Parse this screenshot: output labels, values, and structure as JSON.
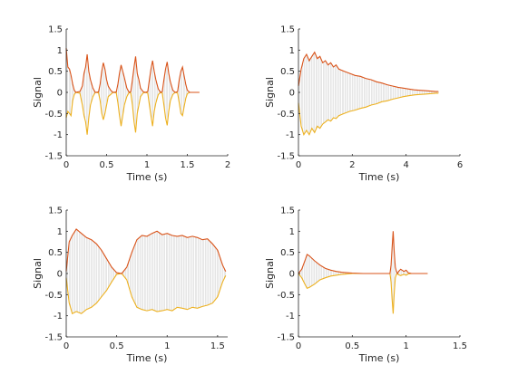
{
  "colors": {
    "upper": "#d95319",
    "lower": "#edb120",
    "fill": "#cccccc",
    "axis": "#262626"
  },
  "chart_data": [
    {
      "type": "area",
      "xlabel": "Time (s)",
      "ylabel": "Signal",
      "xlim": [
        0,
        2
      ],
      "ylim": [
        -1.5,
        1.5
      ],
      "xticks": [
        0,
        0.5,
        1,
        1.5,
        2
      ],
      "xtick_labels": [
        "0",
        "0.5",
        "1",
        "1.5",
        "2"
      ],
      "yticks": [
        -1.5,
        -1,
        -0.5,
        0,
        0.5,
        1,
        1.5
      ],
      "ytick_labels": [
        "-1.5",
        "-1",
        "-0.5",
        "0",
        "0.5",
        "1",
        "1.5"
      ],
      "grid": false,
      "series": [
        {
          "role": "upper envelope",
          "x": [
            0,
            0.02,
            0.04,
            0.06,
            0.08,
            0.1,
            0.12,
            0.14,
            0.17,
            0.2,
            0.22,
            0.24,
            0.26,
            0.28,
            0.3,
            0.33,
            0.36,
            0.4,
            0.42,
            0.44,
            0.46,
            0.48,
            0.5,
            0.52,
            0.55,
            0.58,
            0.62,
            0.64,
            0.66,
            0.68,
            0.7,
            0.72,
            0.75,
            0.78,
            0.8,
            0.82,
            0.84,
            0.86,
            0.88,
            0.9,
            0.92,
            0.95,
            0.98,
            1.01,
            1.03,
            1.05,
            1.07,
            1.09,
            1.11,
            1.14,
            1.17,
            1.19,
            1.21,
            1.23,
            1.25,
            1.27,
            1.29,
            1.32,
            1.35,
            1.38,
            1.4,
            1.42,
            1.44,
            1.46,
            1.48,
            1.5,
            1.53,
            1.56,
            1.6,
            1.65
          ],
          "y": [
            1.05,
            0.6,
            0.55,
            0.4,
            0.2,
            0.05,
            0.0,
            0.01,
            0.02,
            0.15,
            0.45,
            0.6,
            0.9,
            0.5,
            0.3,
            0.1,
            0.0,
            0.01,
            0.2,
            0.5,
            0.7,
            0.55,
            0.3,
            0.15,
            0.05,
            0.0,
            0.01,
            0.2,
            0.45,
            0.65,
            0.5,
            0.35,
            0.1,
            0.0,
            0.02,
            0.3,
            0.6,
            0.85,
            0.45,
            0.3,
            0.1,
            0.02,
            0.0,
            0.02,
            0.3,
            0.55,
            0.75,
            0.5,
            0.3,
            0.08,
            0.0,
            0.02,
            0.3,
            0.55,
            0.72,
            0.45,
            0.25,
            0.05,
            0.0,
            0.02,
            0.3,
            0.5,
            0.6,
            0.4,
            0.2,
            0.05,
            0.0,
            0.0,
            0.0,
            0.0
          ]
        },
        {
          "role": "lower envelope",
          "x": [
            0,
            0.02,
            0.04,
            0.06,
            0.08,
            0.1,
            0.12,
            0.14,
            0.17,
            0.2,
            0.22,
            0.24,
            0.26,
            0.28,
            0.3,
            0.33,
            0.36,
            0.4,
            0.42,
            0.44,
            0.46,
            0.48,
            0.5,
            0.52,
            0.55,
            0.58,
            0.62,
            0.64,
            0.66,
            0.68,
            0.7,
            0.72,
            0.75,
            0.78,
            0.8,
            0.82,
            0.84,
            0.86,
            0.88,
            0.9,
            0.92,
            0.95,
            0.98,
            1.01,
            1.03,
            1.05,
            1.07,
            1.09,
            1.11,
            1.14,
            1.17,
            1.19,
            1.21,
            1.23,
            1.25,
            1.27,
            1.29,
            1.32,
            1.35,
            1.38,
            1.4,
            1.42,
            1.44,
            1.46,
            1.48,
            1.5,
            1.53,
            1.56,
            1.6,
            1.65
          ],
          "y": [
            -0.6,
            -0.45,
            -0.5,
            -0.55,
            -0.2,
            -0.05,
            0.0,
            -0.01,
            -0.02,
            -0.3,
            -0.55,
            -0.7,
            -1.0,
            -0.6,
            -0.3,
            -0.1,
            0.0,
            -0.01,
            -0.2,
            -0.5,
            -0.65,
            -0.5,
            -0.3,
            -0.1,
            -0.05,
            0.0,
            -0.01,
            -0.25,
            -0.55,
            -0.8,
            -0.55,
            -0.3,
            -0.1,
            0.0,
            -0.02,
            -0.3,
            -0.7,
            -0.95,
            -0.5,
            -0.3,
            -0.1,
            -0.02,
            0.0,
            -0.02,
            -0.3,
            -0.55,
            -0.8,
            -0.45,
            -0.25,
            -0.05,
            0.0,
            -0.02,
            -0.3,
            -0.6,
            -0.78,
            -0.45,
            -0.2,
            -0.05,
            0.0,
            -0.02,
            -0.25,
            -0.5,
            -0.55,
            -0.35,
            -0.15,
            -0.03,
            0.0,
            0.0,
            0.0,
            0.0
          ]
        }
      ]
    },
    {
      "type": "area",
      "xlabel": "Time (s)",
      "ylabel": "Signal",
      "xlim": [
        0,
        6
      ],
      "ylim": [
        -1.5,
        1.5
      ],
      "xticks": [
        0,
        2,
        4,
        6
      ],
      "xtick_labels": [
        "0",
        "2",
        "4",
        "6"
      ],
      "yticks": [
        -1.5,
        -1,
        -0.5,
        0,
        0.5,
        1,
        1.5
      ],
      "ytick_labels": [
        "-1.5",
        "-1",
        "-0.5",
        "0",
        "0.5",
        "1",
        "1.5"
      ],
      "grid": false,
      "series": [
        {
          "role": "upper envelope",
          "x": [
            0,
            0.1,
            0.2,
            0.3,
            0.4,
            0.5,
            0.6,
            0.7,
            0.8,
            0.9,
            1.0,
            1.1,
            1.2,
            1.3,
            1.4,
            1.5,
            1.7,
            1.9,
            2.1,
            2.3,
            2.5,
            2.7,
            2.9,
            3.1,
            3.3,
            3.5,
            3.7,
            3.9,
            4.1,
            4.3,
            4.5,
            4.7,
            4.9,
            5.1,
            5.2
          ],
          "y": [
            0.15,
            0.55,
            0.8,
            0.9,
            0.75,
            0.85,
            0.95,
            0.8,
            0.85,
            0.7,
            0.75,
            0.65,
            0.7,
            0.6,
            0.65,
            0.55,
            0.5,
            0.45,
            0.4,
            0.38,
            0.33,
            0.3,
            0.25,
            0.22,
            0.18,
            0.15,
            0.12,
            0.1,
            0.08,
            0.06,
            0.05,
            0.04,
            0.03,
            0.02,
            0.02
          ]
        },
        {
          "role": "lower envelope",
          "x": [
            0,
            0.1,
            0.2,
            0.3,
            0.4,
            0.5,
            0.6,
            0.7,
            0.8,
            0.9,
            1.0,
            1.1,
            1.2,
            1.3,
            1.4,
            1.5,
            1.7,
            1.9,
            2.1,
            2.3,
            2.5,
            2.7,
            2.9,
            3.1,
            3.3,
            3.5,
            3.7,
            3.9,
            4.1,
            4.3,
            4.5,
            4.7,
            4.9,
            5.1,
            5.2
          ],
          "y": [
            -0.25,
            -0.8,
            -1.0,
            -0.9,
            -1.0,
            -0.85,
            -0.95,
            -0.8,
            -0.85,
            -0.75,
            -0.7,
            -0.65,
            -0.68,
            -0.6,
            -0.62,
            -0.55,
            -0.5,
            -0.45,
            -0.42,
            -0.38,
            -0.35,
            -0.3,
            -0.27,
            -0.22,
            -0.2,
            -0.16,
            -0.13,
            -0.1,
            -0.08,
            -0.06,
            -0.05,
            -0.04,
            -0.03,
            -0.02,
            -0.02
          ]
        }
      ]
    },
    {
      "type": "area",
      "xlabel": "Time (s)",
      "ylabel": "Signal",
      "xlim": [
        0,
        1.6
      ],
      "ylim": [
        -1.5,
        1.5
      ],
      "xticks": [
        0,
        0.5,
        1,
        1.5
      ],
      "xtick_labels": [
        "0",
        "0.5",
        "1",
        "1.5"
      ],
      "yticks": [
        -1.5,
        -1,
        -0.5,
        0,
        0.5,
        1,
        1.5
      ],
      "ytick_labels": [
        "-1.5",
        "-1",
        "-0.5",
        "0",
        "0.5",
        "1",
        "1.5"
      ],
      "grid": false,
      "series": [
        {
          "role": "upper envelope",
          "x": [
            0,
            0.03,
            0.06,
            0.1,
            0.15,
            0.2,
            0.25,
            0.3,
            0.35,
            0.4,
            0.45,
            0.5,
            0.55,
            0.6,
            0.65,
            0.7,
            0.75,
            0.8,
            0.85,
            0.9,
            0.95,
            1.0,
            1.05,
            1.1,
            1.15,
            1.2,
            1.25,
            1.3,
            1.35,
            1.4,
            1.45,
            1.5,
            1.55,
            1.58
          ],
          "y": [
            0.05,
            0.75,
            0.9,
            1.05,
            0.95,
            0.85,
            0.8,
            0.7,
            0.55,
            0.35,
            0.15,
            0.02,
            0.0,
            0.15,
            0.5,
            0.8,
            0.9,
            0.88,
            0.95,
            1.0,
            0.92,
            0.95,
            0.9,
            0.88,
            0.9,
            0.85,
            0.88,
            0.85,
            0.8,
            0.82,
            0.7,
            0.55,
            0.2,
            0.05
          ]
        },
        {
          "role": "lower envelope",
          "x": [
            0,
            0.03,
            0.06,
            0.1,
            0.15,
            0.2,
            0.25,
            0.3,
            0.35,
            0.4,
            0.45,
            0.5,
            0.55,
            0.6,
            0.65,
            0.7,
            0.75,
            0.8,
            0.85,
            0.9,
            0.95,
            1.0,
            1.05,
            1.1,
            1.15,
            1.2,
            1.25,
            1.3,
            1.35,
            1.4,
            1.45,
            1.5,
            1.55,
            1.58
          ],
          "y": [
            -0.1,
            -0.7,
            -0.95,
            -0.9,
            -0.95,
            -0.85,
            -0.8,
            -0.7,
            -0.55,
            -0.4,
            -0.2,
            -0.02,
            0.0,
            -0.15,
            -0.55,
            -0.8,
            -0.85,
            -0.88,
            -0.85,
            -0.9,
            -0.88,
            -0.85,
            -0.88,
            -0.8,
            -0.82,
            -0.85,
            -0.8,
            -0.82,
            -0.78,
            -0.75,
            -0.7,
            -0.55,
            -0.2,
            -0.05
          ]
        }
      ]
    },
    {
      "type": "area",
      "xlabel": "Time (s)",
      "ylabel": "Signal",
      "xlim": [
        0,
        1.5
      ],
      "ylim": [
        -1.5,
        1.5
      ],
      "xticks": [
        0,
        0.5,
        1,
        1.5
      ],
      "xtick_labels": [
        "0",
        "0.5",
        "1",
        "1.5"
      ],
      "yticks": [
        -1.5,
        -1,
        -0.5,
        0,
        0.5,
        1,
        1.5
      ],
      "ytick_labels": [
        "-1.5",
        "-1",
        "-0.5",
        "0",
        "0.5",
        "1",
        "1.5"
      ],
      "grid": false,
      "series": [
        {
          "role": "upper envelope",
          "x": [
            0,
            0.03,
            0.06,
            0.08,
            0.1,
            0.15,
            0.2,
            0.25,
            0.3,
            0.35,
            0.4,
            0.45,
            0.5,
            0.6,
            0.7,
            0.8,
            0.85,
            0.86,
            0.87,
            0.88,
            0.89,
            0.9,
            0.91,
            0.92,
            0.93,
            0.95,
            0.98,
            1.0,
            1.02,
            1.05,
            1.1,
            1.2
          ],
          "y": [
            0.0,
            0.1,
            0.3,
            0.45,
            0.42,
            0.3,
            0.2,
            0.12,
            0.08,
            0.05,
            0.03,
            0.02,
            0.01,
            0.0,
            0.0,
            0.0,
            0.0,
            0.2,
            0.6,
            1.0,
            0.5,
            0.15,
            0.05,
            0.0,
            0.05,
            0.1,
            0.05,
            0.08,
            0.02,
            0.0,
            0.0,
            0.0
          ]
        },
        {
          "role": "lower envelope",
          "x": [
            0,
            0.03,
            0.06,
            0.08,
            0.1,
            0.15,
            0.2,
            0.25,
            0.3,
            0.35,
            0.4,
            0.45,
            0.5,
            0.6,
            0.7,
            0.8,
            0.85,
            0.86,
            0.87,
            0.88,
            0.89,
            0.9,
            0.91,
            0.92,
            0.93,
            0.95,
            0.98,
            1.0,
            1.02,
            1.05,
            1.1,
            1.2
          ],
          "y": [
            0.0,
            -0.1,
            -0.25,
            -0.35,
            -0.33,
            -0.25,
            -0.15,
            -0.1,
            -0.06,
            -0.04,
            -0.02,
            -0.01,
            0.0,
            0.0,
            0.0,
            0.0,
            0.0,
            -0.2,
            -0.6,
            -0.95,
            -0.45,
            -0.1,
            -0.02,
            0.0,
            -0.03,
            -0.05,
            -0.02,
            -0.04,
            -0.01,
            0.0,
            0.0,
            0.0
          ]
        }
      ]
    }
  ]
}
